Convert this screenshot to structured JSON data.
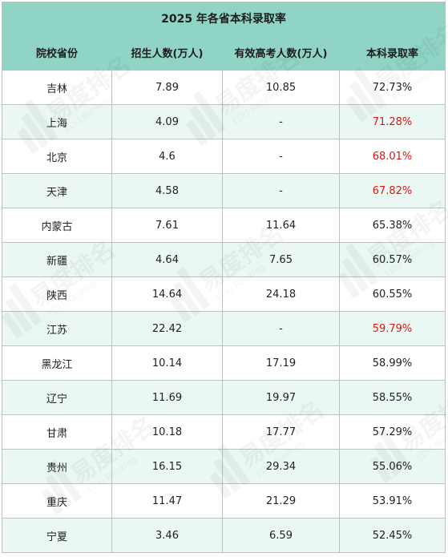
{
  "table": {
    "title": "2025 年各省本科录取率",
    "headers": [
      "院校省份",
      "招生人数(万人)",
      "有效高考人数(万人)",
      "本科录取率"
    ],
    "rows": [
      {
        "province": "吉林",
        "enroll": "7.89",
        "examinees": "10.85",
        "rate": "72.73%",
        "highlight": false
      },
      {
        "province": "上海",
        "enroll": "4.09",
        "examinees": "-",
        "rate": "71.28%",
        "highlight": true
      },
      {
        "province": "北京",
        "enroll": "4.6",
        "examinees": "-",
        "rate": "68.01%",
        "highlight": true
      },
      {
        "province": "天津",
        "enroll": "4.58",
        "examinees": "-",
        "rate": "67.82%",
        "highlight": true
      },
      {
        "province": "内蒙古",
        "enroll": "7.61",
        "examinees": "11.64",
        "rate": "65.38%",
        "highlight": false
      },
      {
        "province": "新疆",
        "enroll": "4.64",
        "examinees": "7.65",
        "rate": "60.57%",
        "highlight": false
      },
      {
        "province": "陕西",
        "enroll": "14.64",
        "examinees": "24.18",
        "rate": "60.55%",
        "highlight": false
      },
      {
        "province": "江苏",
        "enroll": "22.42",
        "examinees": "-",
        "rate": "59.79%",
        "highlight": true
      },
      {
        "province": "黑龙江",
        "enroll": "10.14",
        "examinees": "17.19",
        "rate": "58.99%",
        "highlight": false
      },
      {
        "province": "辽宁",
        "enroll": "11.69",
        "examinees": "19.97",
        "rate": "58.55%",
        "highlight": false
      },
      {
        "province": "甘肃",
        "enroll": "10.18",
        "examinees": "17.77",
        "rate": "57.29%",
        "highlight": false
      },
      {
        "province": "贵州",
        "enroll": "16.15",
        "examinees": "29.34",
        "rate": "55.06%",
        "highlight": false
      },
      {
        "province": "重庆",
        "enroll": "11.47",
        "examinees": "21.29",
        "rate": "53.91%",
        "highlight": false
      },
      {
        "province": "宁夏",
        "enroll": "3.46",
        "examinees": "6.59",
        "rate": "52.45%",
        "highlight": false
      }
    ]
  },
  "watermark": {
    "text_cn": "易度排名",
    "text_en": "EDU Ranking"
  },
  "colors": {
    "header_bg": "#8fd4c5",
    "alt_row_bg": "#eaf7f2",
    "highlight_text": "#e3140f"
  }
}
